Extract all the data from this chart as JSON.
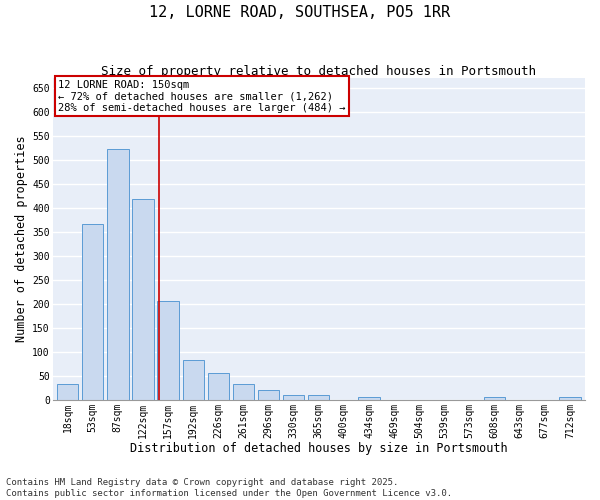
{
  "title": "12, LORNE ROAD, SOUTHSEA, PO5 1RR",
  "subtitle": "Size of property relative to detached houses in Portsmouth",
  "xlabel": "Distribution of detached houses by size in Portsmouth",
  "ylabel": "Number of detached properties",
  "categories": [
    "18sqm",
    "53sqm",
    "87sqm",
    "122sqm",
    "157sqm",
    "192sqm",
    "226sqm",
    "261sqm",
    "296sqm",
    "330sqm",
    "365sqm",
    "400sqm",
    "434sqm",
    "469sqm",
    "504sqm",
    "539sqm",
    "573sqm",
    "608sqm",
    "643sqm",
    "677sqm",
    "712sqm"
  ],
  "values": [
    33,
    366,
    522,
    418,
    205,
    83,
    55,
    33,
    20,
    11,
    10,
    0,
    5,
    0,
    0,
    0,
    0,
    5,
    0,
    0,
    5
  ],
  "bar_color": "#c9d9ef",
  "bar_edge_color": "#5b9bd5",
  "background_color": "#e8eef8",
  "grid_color": "#ffffff",
  "annotation_line1": "12 LORNE ROAD: 150sqm",
  "annotation_line2": "← 72% of detached houses are smaller (1,262)",
  "annotation_line3": "28% of semi-detached houses are larger (484) →",
  "vline_x": 3.65,
  "vline_color": "#cc0000",
  "ylim": [
    0,
    670
  ],
  "yticks": [
    0,
    50,
    100,
    150,
    200,
    250,
    300,
    350,
    400,
    450,
    500,
    550,
    600,
    650
  ],
  "footnote": "Contains HM Land Registry data © Crown copyright and database right 2025.\nContains public sector information licensed under the Open Government Licence v3.0.",
  "title_fontsize": 11,
  "subtitle_fontsize": 9,
  "xlabel_fontsize": 8.5,
  "ylabel_fontsize": 8.5,
  "tick_fontsize": 7,
  "annotation_fontsize": 7.5,
  "footnote_fontsize": 6.5
}
